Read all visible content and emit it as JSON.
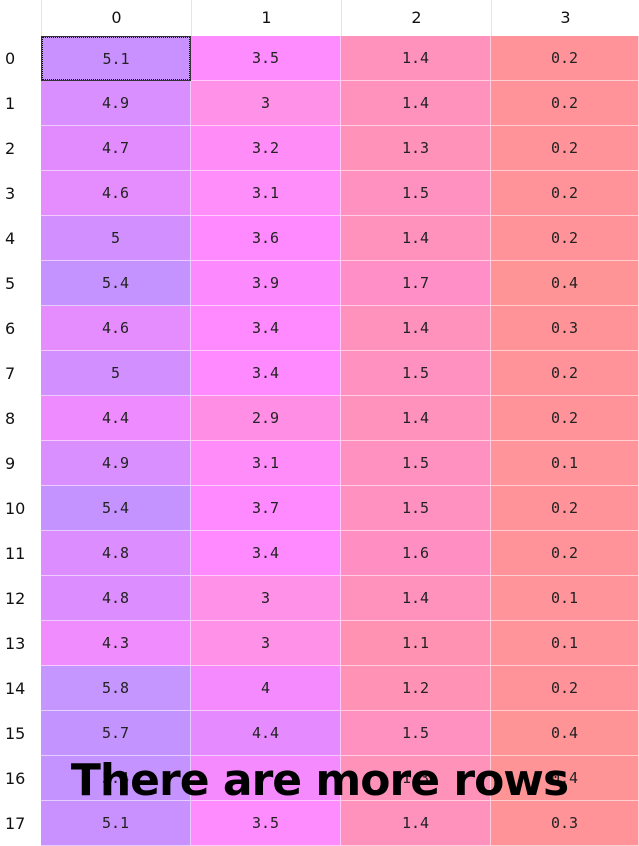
{
  "columns": [
    "0",
    "1",
    "2",
    "3"
  ],
  "rows": [
    {
      "index": "0",
      "values": [
        "5.1",
        "3.5",
        "1.4",
        "0.2"
      ]
    },
    {
      "index": "1",
      "values": [
        "4.9",
        "3",
        "1.4",
        "0.2"
      ]
    },
    {
      "index": "2",
      "values": [
        "4.7",
        "3.2",
        "1.3",
        "0.2"
      ]
    },
    {
      "index": "3",
      "values": [
        "4.6",
        "3.1",
        "1.5",
        "0.2"
      ]
    },
    {
      "index": "4",
      "values": [
        "5",
        "3.6",
        "1.4",
        "0.2"
      ]
    },
    {
      "index": "5",
      "values": [
        "5.4",
        "3.9",
        "1.7",
        "0.4"
      ]
    },
    {
      "index": "6",
      "values": [
        "4.6",
        "3.4",
        "1.4",
        "0.3"
      ]
    },
    {
      "index": "7",
      "values": [
        "5",
        "3.4",
        "1.5",
        "0.2"
      ]
    },
    {
      "index": "8",
      "values": [
        "4.4",
        "2.9",
        "1.4",
        "0.2"
      ]
    },
    {
      "index": "9",
      "values": [
        "4.9",
        "3.1",
        "1.5",
        "0.1"
      ]
    },
    {
      "index": "10",
      "values": [
        "5.4",
        "3.7",
        "1.5",
        "0.2"
      ]
    },
    {
      "index": "11",
      "values": [
        "4.8",
        "3.4",
        "1.6",
        "0.2"
      ]
    },
    {
      "index": "12",
      "values": [
        "4.8",
        "3",
        "1.4",
        "0.1"
      ]
    },
    {
      "index": "13",
      "values": [
        "4.3",
        "3",
        "1.1",
        "0.1"
      ]
    },
    {
      "index": "14",
      "values": [
        "5.8",
        "4",
        "1.2",
        "0.2"
      ]
    },
    {
      "index": "15",
      "values": [
        "5.7",
        "4.4",
        "1.5",
        "0.4"
      ]
    },
    {
      "index": "16",
      "values": [
        "5.4",
        "",
        "1.3",
        "0.4"
      ]
    },
    {
      "index": "17",
      "values": [
        "5.1",
        "3.5",
        "1.4",
        "0.3"
      ]
    }
  ],
  "cell_colors": [
    [
      "#c991ff",
      "#ff8cff",
      "#ff91bd",
      "#ff9399"
    ],
    [
      "#d98fff",
      "#ff91e8",
      "#ff91bd",
      "#ff9399"
    ],
    [
      "#e18bff",
      "#ff8cf7",
      "#ff92b8",
      "#ff9399"
    ],
    [
      "#e58cff",
      "#ff8dfa",
      "#ff91c0",
      "#ff9399"
    ],
    [
      "#d18fff",
      "#ff89ff",
      "#ff91bd",
      "#ff9399"
    ],
    [
      "#c493ff",
      "#fd89ff",
      "#ff8fc6",
      "#ff9497"
    ],
    [
      "#e58cff",
      "#ff89ff",
      "#ff91bd",
      "#ff9398"
    ],
    [
      "#d18fff",
      "#ff89ff",
      "#ff91c0",
      "#ff9399"
    ],
    [
      "#ee8cff",
      "#ff8ee4",
      "#ff91bd",
      "#ff9399"
    ],
    [
      "#d98fff",
      "#ff8cf8",
      "#ff91c0",
      "#ff949a"
    ],
    [
      "#c493ff",
      "#ff89ff",
      "#ff91c0",
      "#ff9399"
    ],
    [
      "#dc8dff",
      "#ff89ff",
      "#ff8fc3",
      "#ff9399"
    ],
    [
      "#dc8dff",
      "#ff91e8",
      "#ff91bd",
      "#ff949a"
    ],
    [
      "#f18cff",
      "#ff91e8",
      "#ff92b2",
      "#ff949a"
    ],
    [
      "#c596ff",
      "#f58aff",
      "#ff92b5",
      "#ff9399"
    ],
    [
      "#c393ff",
      "#e68aff",
      "#ff91c0",
      "#ff9497"
    ],
    [
      "#c493ff",
      "#f58aff",
      "#ff92b8",
      "#ff9497"
    ],
    [
      "#c991ff",
      "#ff8cff",
      "#ff91bd",
      "#ff9398"
    ]
  ],
  "selected_cell": "0-0",
  "overlay_text": "There are more rows"
}
